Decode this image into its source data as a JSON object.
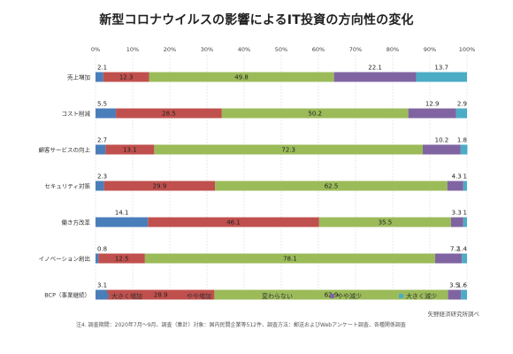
{
  "title": "新型コロナウイルスの影響によるIT投資の方向性の変化",
  "footnote": "注4. 調査期間：2020年7月～9月、調査（集計）対象：国内民間企業等512件、調査方法：郵送およびWebアンケート調査、各種関係調査",
  "source": "矢野経済研究所調べ",
  "colors": {
    "大きく増加": "#4a7ebb",
    "やや増加": "#c0504d",
    "変わらない": "#9bbb59",
    "やや減少": "#8064a2",
    "大きく減少": "#4bacc6"
  },
  "chart_data": {
    "type": "bar",
    "orientation": "horizontal",
    "stacked": "percent",
    "xlim": [
      0,
      100
    ],
    "x_ticks": [
      "0%",
      "10%",
      "20%",
      "30%",
      "40%",
      "50%",
      "60%",
      "70%",
      "80%",
      "90%",
      "100%"
    ],
    "grid": true,
    "legend_position": "bottom",
    "categories": [
      "売上増加",
      "コスト削減",
      "顧客サービスの向上",
      "セキュリティ対策",
      "働き方改革",
      "イノベーション創出",
      "BCP（事業継続）"
    ],
    "series": [
      {
        "name": "大きく増加",
        "values": [
          2.1,
          5.5,
          2.7,
          2.3,
          14.1,
          0.8,
          3.1
        ]
      },
      {
        "name": "やや増加",
        "values": [
          12.3,
          28.5,
          13.1,
          29.9,
          46.1,
          12.5,
          28.9
        ]
      },
      {
        "name": "変わらない",
        "values": [
          49.8,
          50.2,
          72.3,
          62.5,
          35.5,
          78.1,
          62.9
        ]
      },
      {
        "name": "やや減少",
        "values": [
          22.1,
          12.9,
          10.2,
          4.3,
          3.3,
          7.2,
          3.5
        ]
      },
      {
        "name": "大きく減少",
        "values": [
          13.7,
          2.9,
          1.8,
          1.0,
          1.0,
          1.4,
          1.6
        ]
      }
    ]
  }
}
